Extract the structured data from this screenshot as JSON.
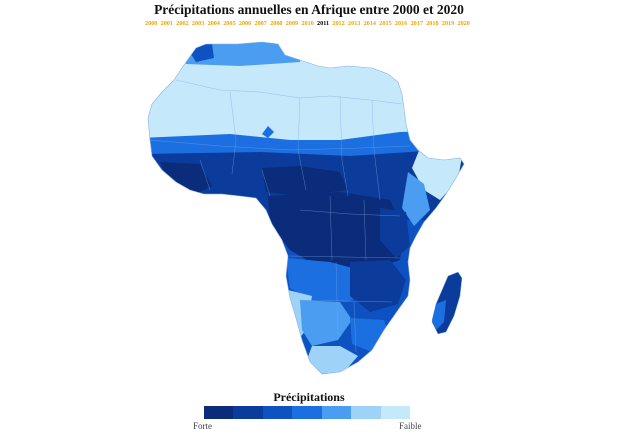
{
  "title": "Précipitations annuelles en Afrique entre 2000 et 2020",
  "years": [
    "2000",
    "2001",
    "2002",
    "2003",
    "2004",
    "2005",
    "2006",
    "2007",
    "2008",
    "2009",
    "2010",
    "2011",
    "2012",
    "2013",
    "2014",
    "2015",
    "2016",
    "2017",
    "2018",
    "2019",
    "2020"
  ],
  "selected_year": "2011",
  "colors": {
    "year_inactive": "#f0a500",
    "year_active": "#000000",
    "ramp": [
      "#0a2c7a",
      "#0b3c9c",
      "#0e52c2",
      "#1c6fe0",
      "#4a9df0",
      "#9ed2f7",
      "#c5e8fb"
    ],
    "border": "#8ab4e6"
  },
  "legend": {
    "title": "Précipitations",
    "low_label": "Forte",
    "high_label": "Faible"
  }
}
